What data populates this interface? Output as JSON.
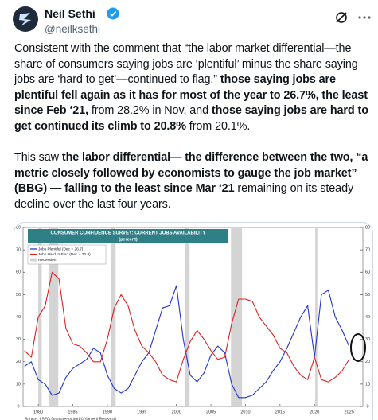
{
  "post": {
    "author": {
      "name": "Neil Sethi",
      "handle": "@neilksethi"
    },
    "paragraphs": [
      [
        {
          "text": "Consistent with the comment that “the labor market differential—the share of consumers saying jobs are ‘plentiful’ minus the share saying jobs are ‘hard to get’—continued to flag,” ",
          "bold": false
        },
        {
          "text": "those saying jobs are plentiful fell again as it has for most of the year to 26.7%, the least since Feb ‘21,",
          "bold": true
        },
        {
          "text": " from 28.2% in Nov, and ",
          "bold": false
        },
        {
          "text": "those saying jobs are hard to get continued its climb to 20.8%",
          "bold": true
        },
        {
          "text": " from 20.1%.",
          "bold": false
        }
      ],
      [
        {
          "text": "This saw ",
          "bold": false
        },
        {
          "text": "the labor differential— the difference between the two, “a metric closely followed by economists to gauge the job market” (BBG) — falling to the least since Mar ‘21",
          "bold": true
        },
        {
          "text": " remaining on its steady decline over the last four years.",
          "bold": false
        }
      ]
    ],
    "image": {
      "chart_data": {
        "type": "line",
        "title": "CONSUMER CONFIDENCE SURVEY: CURRENT JOBS AVAILABILITY",
        "subtitle": "(percent)",
        "x": [
          1978,
          1979,
          1980,
          1981,
          1982,
          1983,
          1984,
          1985,
          1986,
          1987,
          1988,
          1989,
          1990,
          1991,
          1992,
          1993,
          1994,
          1995,
          1996,
          1997,
          1998,
          1999,
          2000,
          2001,
          2002,
          2003,
          2004,
          2005,
          2006,
          2007,
          2008,
          2009,
          2010,
          2011,
          2012,
          2013,
          2014,
          2015,
          2016,
          2017,
          2018,
          2019,
          2020,
          2021,
          2022,
          2023,
          2024,
          2025
        ],
        "series": [
          {
            "name": "Jobs Plentiful (Dec = 26.7)",
            "color": "#2233cc",
            "values": [
              18,
              20,
              12,
              10,
              5,
              6,
              13,
              17,
              19,
              21,
              26,
              24,
              14,
              8,
              6,
              8,
              14,
              20,
              24,
              34,
              44,
              45,
              54,
              30,
              14,
              11,
              15,
              23,
              27,
              24,
              10,
              4,
              4,
              5,
              8,
              11,
              16,
              20,
              26,
              33,
              40,
              45,
              22,
              50,
              52,
              40,
              34,
              27
            ]
          },
          {
            "name": "Jobs Hard to Find (Dec = 20.8)",
            "color": "#dd2222",
            "values": [
              25,
              22,
              40,
              45,
              60,
              57,
              35,
              28,
              27,
              24,
              20,
              20,
              30,
              44,
              50,
              45,
              34,
              27,
              24,
              20,
              14,
              12,
              11,
              21,
              29,
              34,
              30,
              25,
              21,
              22,
              37,
              48,
              48,
              47,
              40,
              36,
              32,
              26,
              24,
              18,
              14,
              12,
              22,
              12,
              11,
              13,
              16,
              21
            ]
          }
        ],
        "recession_label": "Recession",
        "recession_color": "#d4d4d4",
        "recessions": [
          [
            1980.0,
            1980.5
          ],
          [
            1981.5,
            1982.9
          ],
          [
            1990.5,
            1991.2
          ],
          [
            2001.2,
            2001.9
          ],
          [
            2007.9,
            2009.5
          ],
          [
            2020.1,
            2020.4
          ]
        ],
        "xlim": [
          1977.8,
          2027
        ],
        "xticks": [
          1980,
          1985,
          1990,
          1995,
          2000,
          2005,
          2010,
          2015,
          2020,
          2025
        ],
        "ylim": [
          0,
          80
        ],
        "yticks": [
          0,
          10,
          20,
          30,
          40,
          50,
          60,
          70,
          80
        ],
        "source": "Source: LSEG Datastream and © Yardeni Research"
      }
    }
  }
}
